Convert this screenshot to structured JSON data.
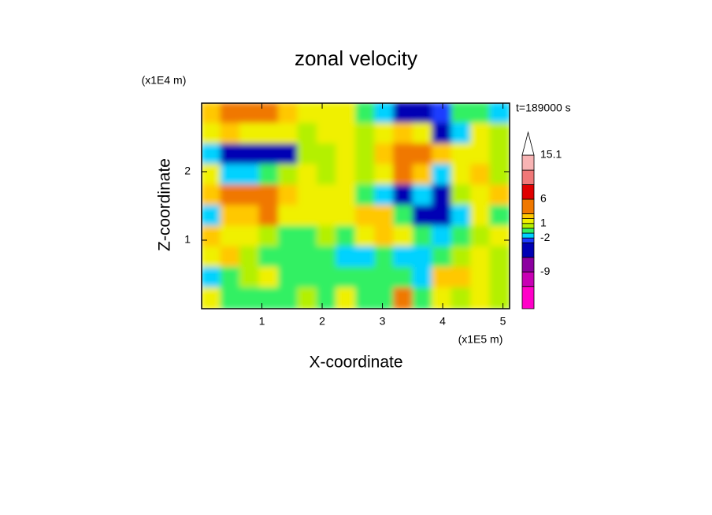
{
  "chart_data": {
    "type": "contour",
    "title": "zonal velocity",
    "xlabel": "X-coordinate",
    "ylabel": "Z-coordinate",
    "x_multiplier": "(x1E5 m)",
    "y_multiplier": "(x1E4 m)",
    "time_label": "t=189000 s",
    "xlim": [
      0,
      5.11
    ],
    "ylim": [
      0,
      3.0
    ],
    "xticks": [
      1,
      2,
      3,
      4,
      5
    ],
    "yticks": [
      1,
      2
    ],
    "field": {
      "x": [
        0.16,
        0.48,
        0.8,
        1.12,
        1.44,
        1.76,
        2.08,
        2.4,
        2.72,
        3.04,
        3.35,
        3.67,
        3.99,
        4.31,
        4.63,
        4.95
      ],
      "z": [
        2.85,
        2.55,
        2.25,
        1.95,
        1.65,
        1.35,
        1.05,
        0.75,
        0.45,
        0.15
      ],
      "values": [
        [
          2.5,
          4,
          4,
          4,
          2.5,
          1.5,
          1.5,
          1.5,
          -0.5,
          -1.5,
          -4,
          -5,
          -2.5,
          -0.5,
          -0.5,
          -1.5
        ],
        [
          1.5,
          2.5,
          1.5,
          1.5,
          1.5,
          0.5,
          1.5,
          1.5,
          0.5,
          1.5,
          2.5,
          1.5,
          -4,
          -1.5,
          1.5,
          0.5
        ],
        [
          -1.5,
          -4,
          -5,
          -5,
          -4,
          0.5,
          0.5,
          1.5,
          0.5,
          2.5,
          4,
          4,
          2.5,
          1.5,
          1.5,
          0.5
        ],
        [
          1.5,
          -1.5,
          -1.5,
          -0.5,
          0.5,
          1.5,
          0.5,
          1.5,
          0.5,
          1.5,
          4,
          2.5,
          -1.5,
          1.5,
          2.5,
          0.5
        ],
        [
          2.5,
          4,
          4,
          4,
          2.5,
          1.5,
          1.5,
          1.5,
          -0.5,
          -1.5,
          -4,
          -1.5,
          -4,
          0.5,
          1.5,
          2.5
        ],
        [
          -1.5,
          2.5,
          2.5,
          4,
          1.5,
          1.5,
          1.5,
          1.5,
          2.5,
          2.5,
          -0.5,
          -4,
          -5,
          -1.5,
          1.5,
          -0.5
        ],
        [
          2.5,
          1.5,
          1.5,
          0.5,
          -0.5,
          -0.5,
          0.5,
          -0.5,
          1.5,
          2.5,
          1.5,
          -0.5,
          -1.5,
          -0.5,
          0.5,
          1.5
        ],
        [
          1.5,
          2.5,
          0.5,
          -0.5,
          -0.5,
          -0.5,
          -0.5,
          -1.5,
          -1.5,
          -0.5,
          -1.5,
          -1.5,
          -0.5,
          0.5,
          1.5,
          0.5
        ],
        [
          -1.5,
          -0.5,
          0.5,
          1.5,
          -0.5,
          -0.5,
          -0.5,
          -0.5,
          -0.5,
          -0.5,
          -0.5,
          -1.5,
          2.5,
          2.5,
          1.5,
          0.5
        ],
        [
          1.5,
          -0.5,
          -0.5,
          -0.5,
          -0.5,
          0.5,
          -0.5,
          1.5,
          -0.5,
          -0.5,
          4,
          -0.5,
          1.5,
          0.5,
          1.5,
          0.5
        ]
      ]
    },
    "colorbar": {
      "clim": [
        -16.6,
        15.1
      ],
      "levels": [
        -12,
        -9,
        -6,
        -3,
        -2,
        -1,
        0,
        1,
        2,
        3,
        6,
        9,
        12
      ],
      "colors": [
        "#ff00c8",
        "#c800b4",
        "#8c00a0",
        "#0000b4",
        "#1e3cff",
        "#00d2ff",
        "#32f064",
        "#b4f000",
        "#f0f000",
        "#ffc800",
        "#f07800",
        "#e00000",
        "#f07878",
        "#f8b4b4"
      ],
      "over_color": "#ffffff",
      "ticks": [
        15.1,
        6,
        1,
        -2,
        -9
      ]
    }
  }
}
